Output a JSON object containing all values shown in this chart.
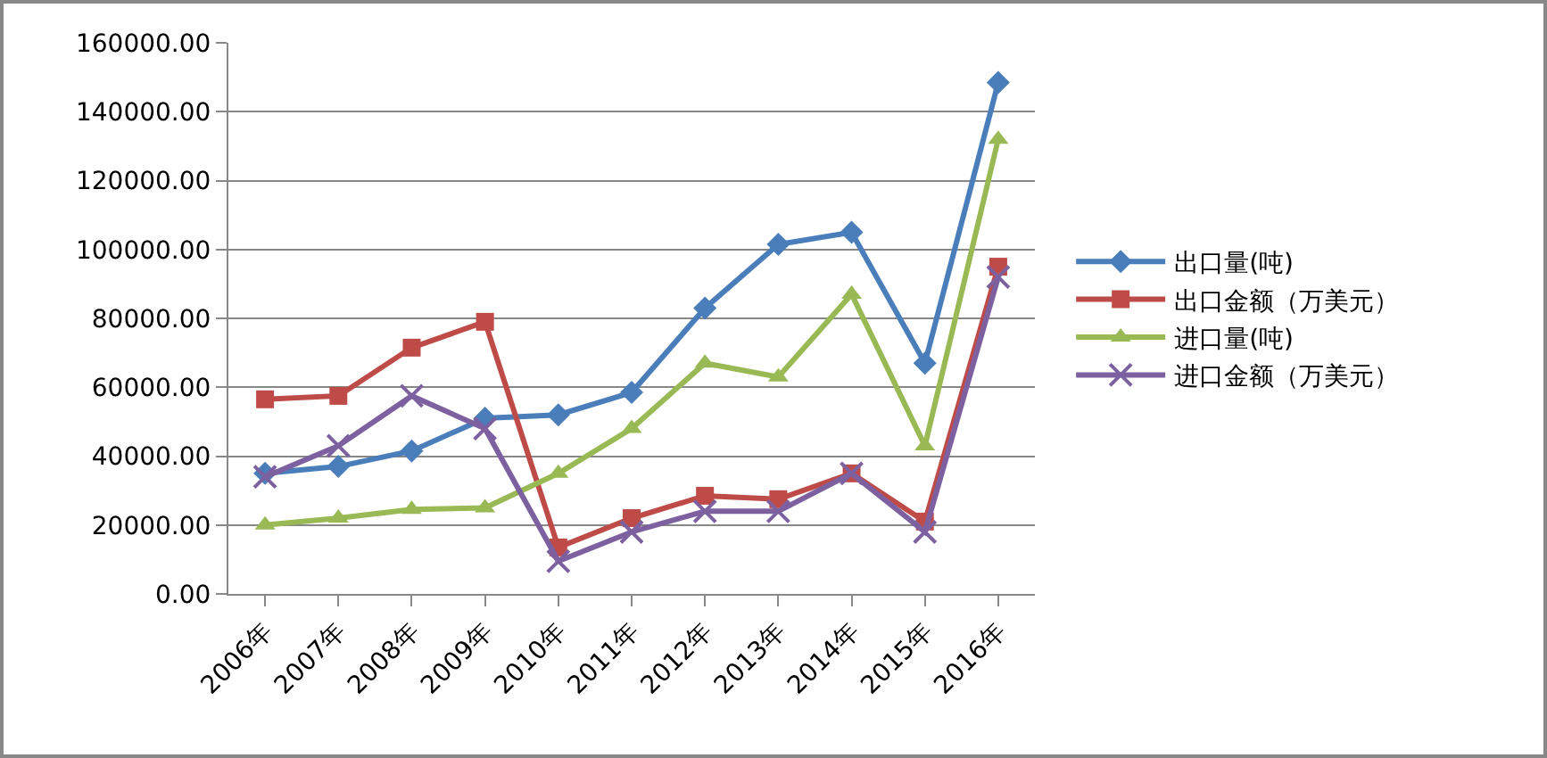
{
  "chart_data": {
    "type": "line",
    "categories": [
      "2006年",
      "2007年",
      "2008年",
      "2009年",
      "2010年",
      "2011年",
      "2012年",
      "2013年",
      "2014年",
      "2015年",
      "2016年"
    ],
    "series": [
      {
        "name": "出口量(吨)",
        "color": "#4a7ebb",
        "marker": "diamond",
        "values": [
          35000,
          37000,
          41500,
          51000,
          52000,
          58500,
          83000,
          101500,
          105000,
          67000,
          148500
        ]
      },
      {
        "name": "出口金额（万美元）",
        "color": "#be4b48",
        "marker": "square",
        "values": [
          56500,
          57500,
          71500,
          79000,
          13500,
          22000,
          28500,
          27500,
          35000,
          21000,
          95000
        ]
      },
      {
        "name": "进口量(吨)",
        "color": "#98b954",
        "marker": "triangle",
        "values": [
          20000,
          22000,
          24500,
          25000,
          35000,
          48000,
          67000,
          63000,
          87000,
          43000,
          132000
        ]
      },
      {
        "name": "进口金额（万美元）",
        "color": "#7d60a0",
        "marker": "cross",
        "values": [
          34000,
          43000,
          57500,
          48000,
          9500,
          18000,
          24000,
          24000,
          35000,
          18000,
          92000
        ]
      }
    ],
    "ylim": [
      0,
      160000
    ],
    "yticks": [
      {
        "value": 0,
        "label": "0.00"
      },
      {
        "value": 20000,
        "label": "20000.00"
      },
      {
        "value": 40000,
        "label": "40000.00"
      },
      {
        "value": 60000,
        "label": "60000.00"
      },
      {
        "value": 80000,
        "label": "80000.00"
      },
      {
        "value": 100000,
        "label": "100000.00"
      },
      {
        "value": 120000,
        "label": "120000.00"
      },
      {
        "value": 140000,
        "label": "140000.00"
      },
      {
        "value": 160000,
        "label": "160000.00"
      }
    ],
    "grid": "y",
    "legend": "right"
  }
}
